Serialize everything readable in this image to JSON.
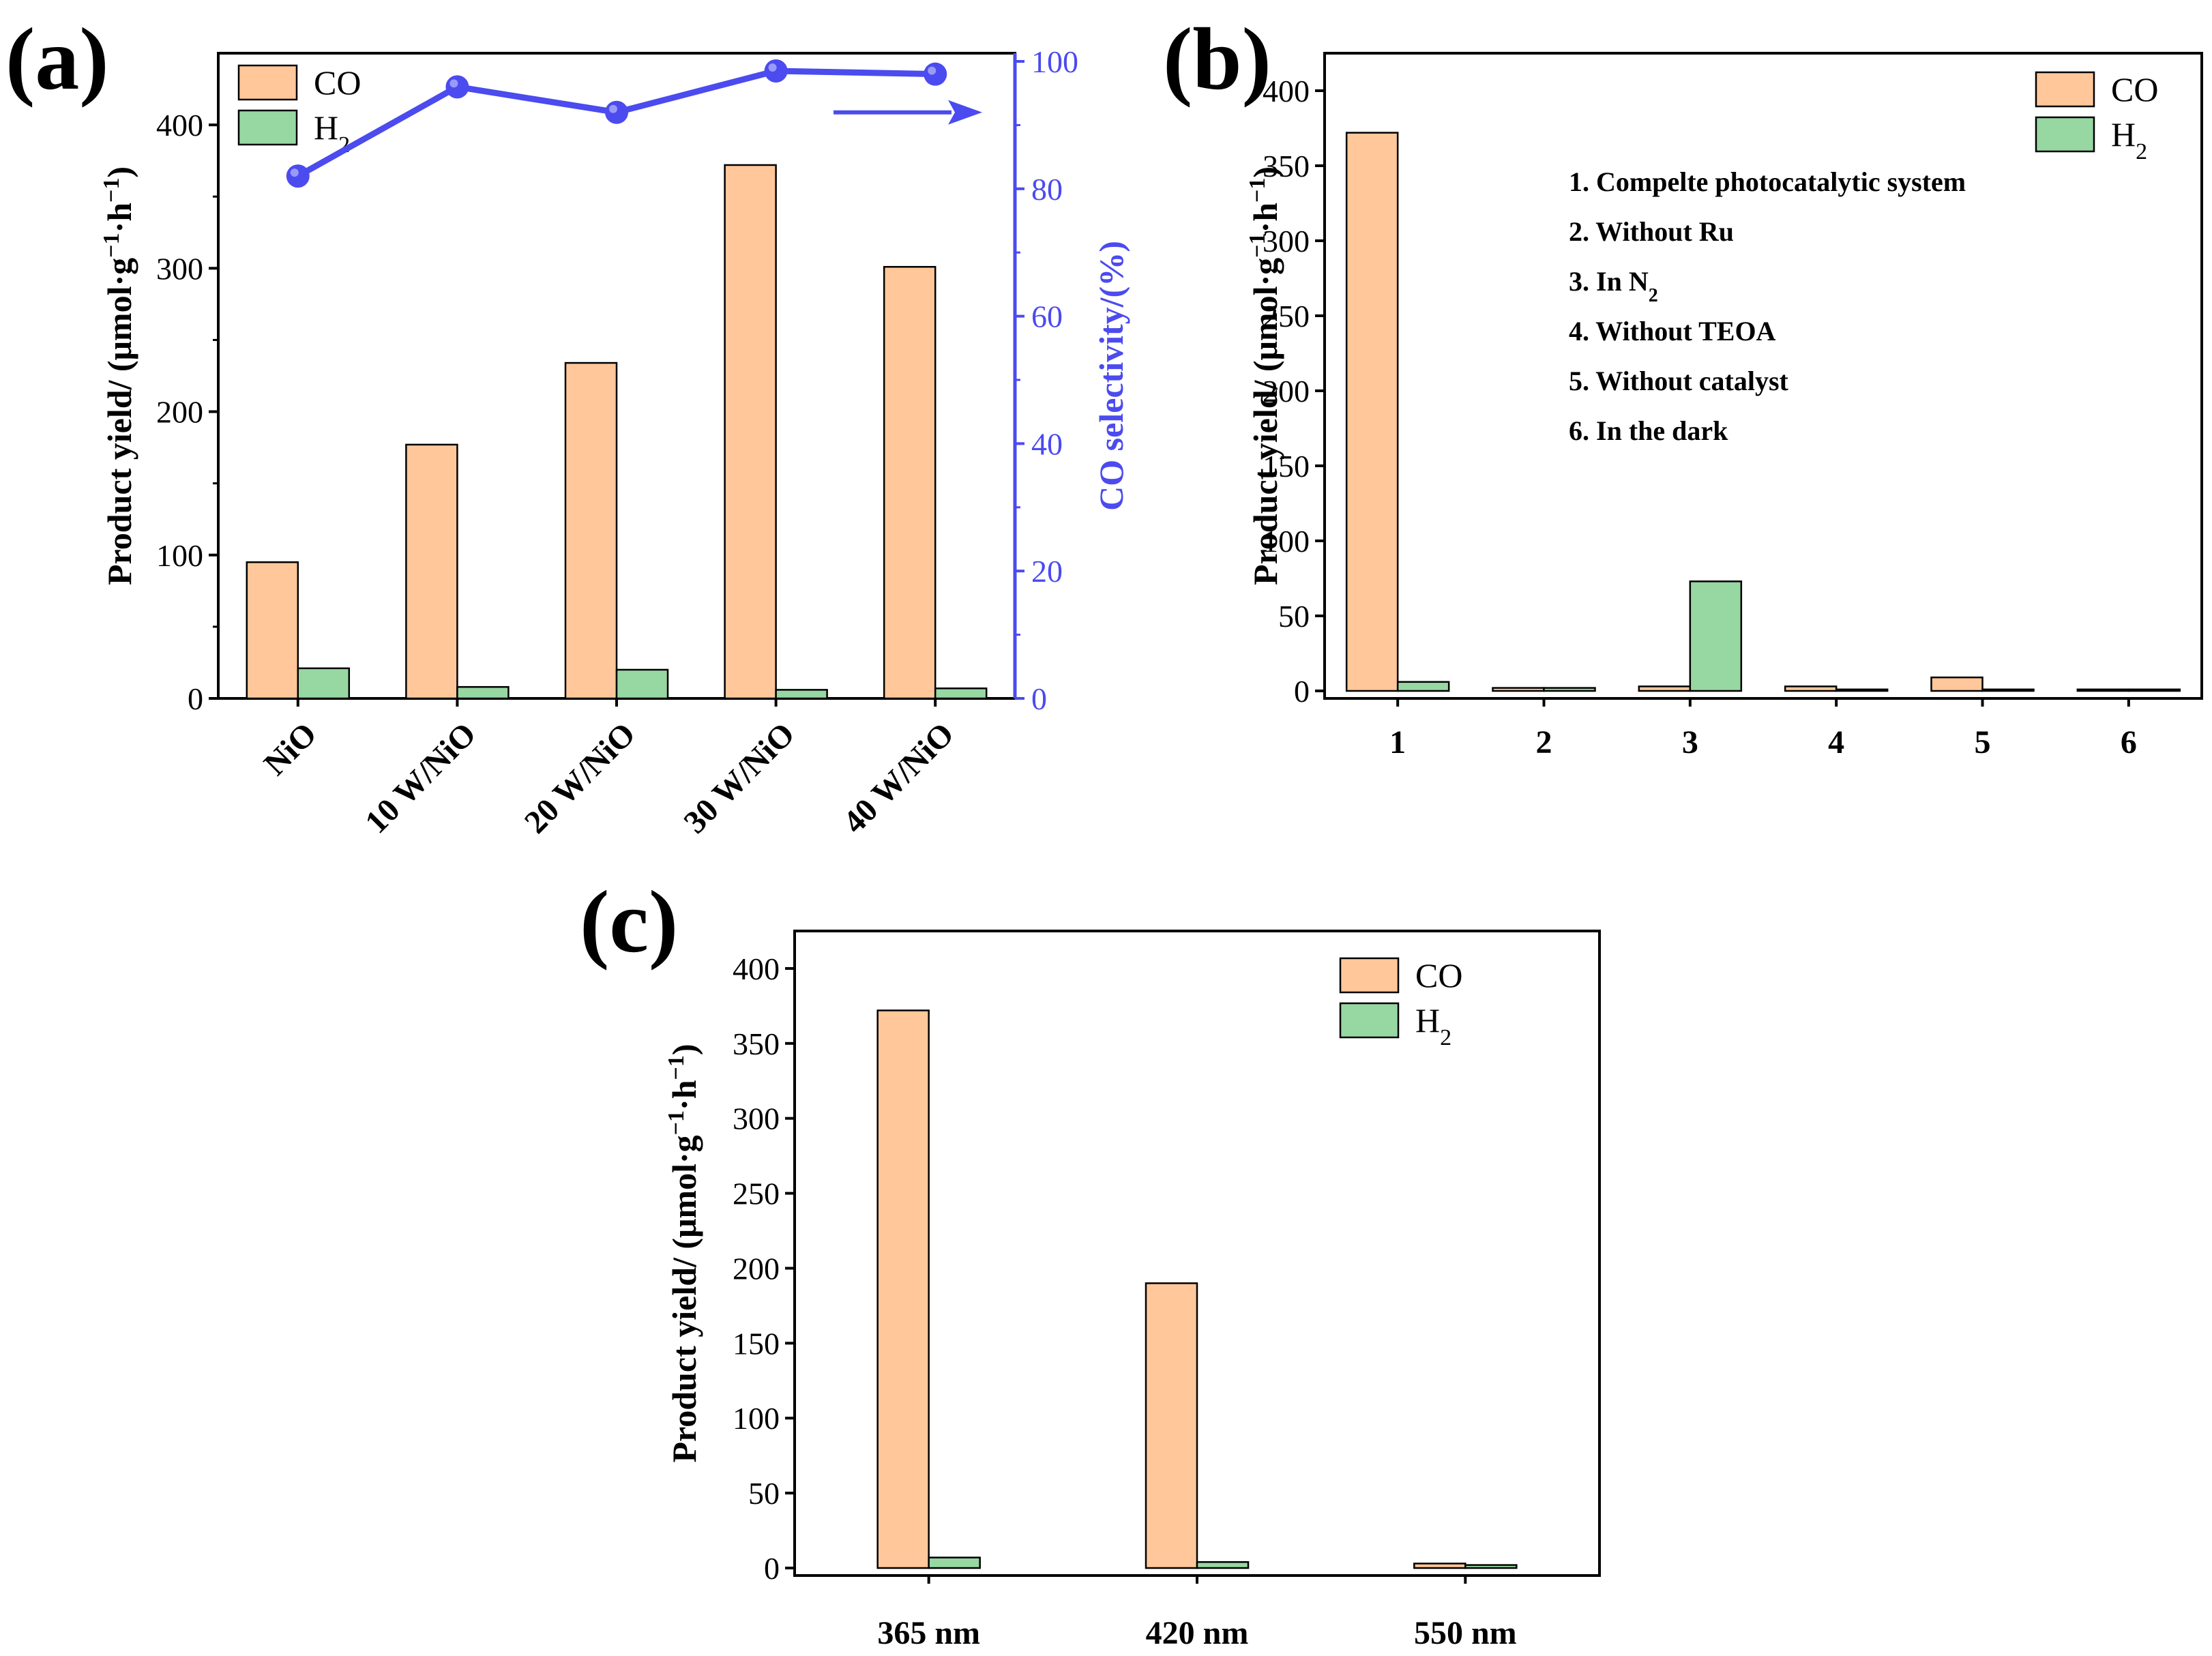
{
  "colors": {
    "co": "#FFC79A",
    "h2": "#97D7A2",
    "selectivity": "#4B4BEF",
    "axis": "#000000"
  },
  "chart_data": [
    {
      "panel": "(a)",
      "type": "bar",
      "categories": [
        "NiO",
        "10 W/NiO",
        "20 W/NiO",
        "30 W/NiO",
        "40 W/NiO"
      ],
      "series": [
        {
          "name": "CO",
          "values": [
            95,
            177,
            234,
            372,
            301
          ]
        },
        {
          "name": "H2",
          "values": [
            21,
            8,
            20,
            6,
            7
          ]
        }
      ],
      "ylabel": "Product yield/ (μmol·g−1·h−1)",
      "ylim": [
        0,
        450
      ],
      "yticks": [
        "0",
        "100",
        "200",
        "300",
        "400"
      ],
      "ytick_values": [
        0,
        100,
        200,
        300,
        400
      ],
      "legend": [
        {
          "name": "CO",
          "label": "CO"
        },
        {
          "name": "H2",
          "label": "H",
          "subscript": "2"
        }
      ],
      "legend_position": "top-left",
      "secondary_axis": {
        "type": "line",
        "name": "CO selectivity",
        "label": "CO selectivity/(%)",
        "values": [
          82,
          96,
          92,
          98.5,
          98
        ],
        "ylim": [
          0,
          100
        ],
        "yticks": [
          "0",
          "20",
          "40",
          "60",
          "80",
          "100"
        ],
        "ytick_values": [
          0,
          20,
          40,
          60,
          80,
          100
        ]
      }
    },
    {
      "panel": "(b)",
      "type": "bar",
      "categories": [
        "1",
        "2",
        "3",
        "4",
        "5",
        "6"
      ],
      "series": [
        {
          "name": "CO",
          "values": [
            372,
            2,
            3,
            3,
            9,
            1
          ]
        },
        {
          "name": "H2",
          "values": [
            6,
            2,
            73,
            1,
            1,
            1
          ]
        }
      ],
      "ylabel": "Product yield/ (μmol·g−1·h−1)",
      "ylim": [
        -5,
        425
      ],
      "yticks": [
        "0",
        "50",
        "100",
        "150",
        "200",
        "250",
        "300",
        "350",
        "400"
      ],
      "ytick_values": [
        0,
        50,
        100,
        150,
        200,
        250,
        300,
        350,
        400
      ],
      "legend": [
        {
          "name": "CO",
          "label": "CO"
        },
        {
          "name": "H2",
          "label": "H",
          "subscript": "2"
        }
      ],
      "legend_position": "top-right",
      "annotations": [
        {
          "text": "1. Compelte photocatalytic system"
        },
        {
          "text": "2. Without Ru"
        },
        {
          "text": "3. In N",
          "subscript": "2"
        },
        {
          "text": "4. Without TEOA"
        },
        {
          "text": "5. Without catalyst"
        },
        {
          "text": "6. In the dark"
        }
      ]
    },
    {
      "panel": "(c)",
      "type": "bar",
      "categories": [
        "365 nm",
        "420 nm",
        "550 nm"
      ],
      "series": [
        {
          "name": "CO",
          "values": [
            372,
            190,
            3
          ]
        },
        {
          "name": "H2",
          "values": [
            7,
            4,
            2
          ]
        }
      ],
      "ylabel": "Product yield/ (μmol·g−1·h−1)",
      "ylim": [
        -5,
        425
      ],
      "yticks": [
        "0",
        "50",
        "100",
        "150",
        "200",
        "250",
        "300",
        "350",
        "400"
      ],
      "ytick_values": [
        0,
        50,
        100,
        150,
        200,
        250,
        300,
        350,
        400
      ],
      "legend": [
        {
          "name": "CO",
          "label": "CO"
        },
        {
          "name": "H2",
          "label": "H",
          "subscript": "2"
        }
      ],
      "legend_position": "top-right"
    }
  ]
}
